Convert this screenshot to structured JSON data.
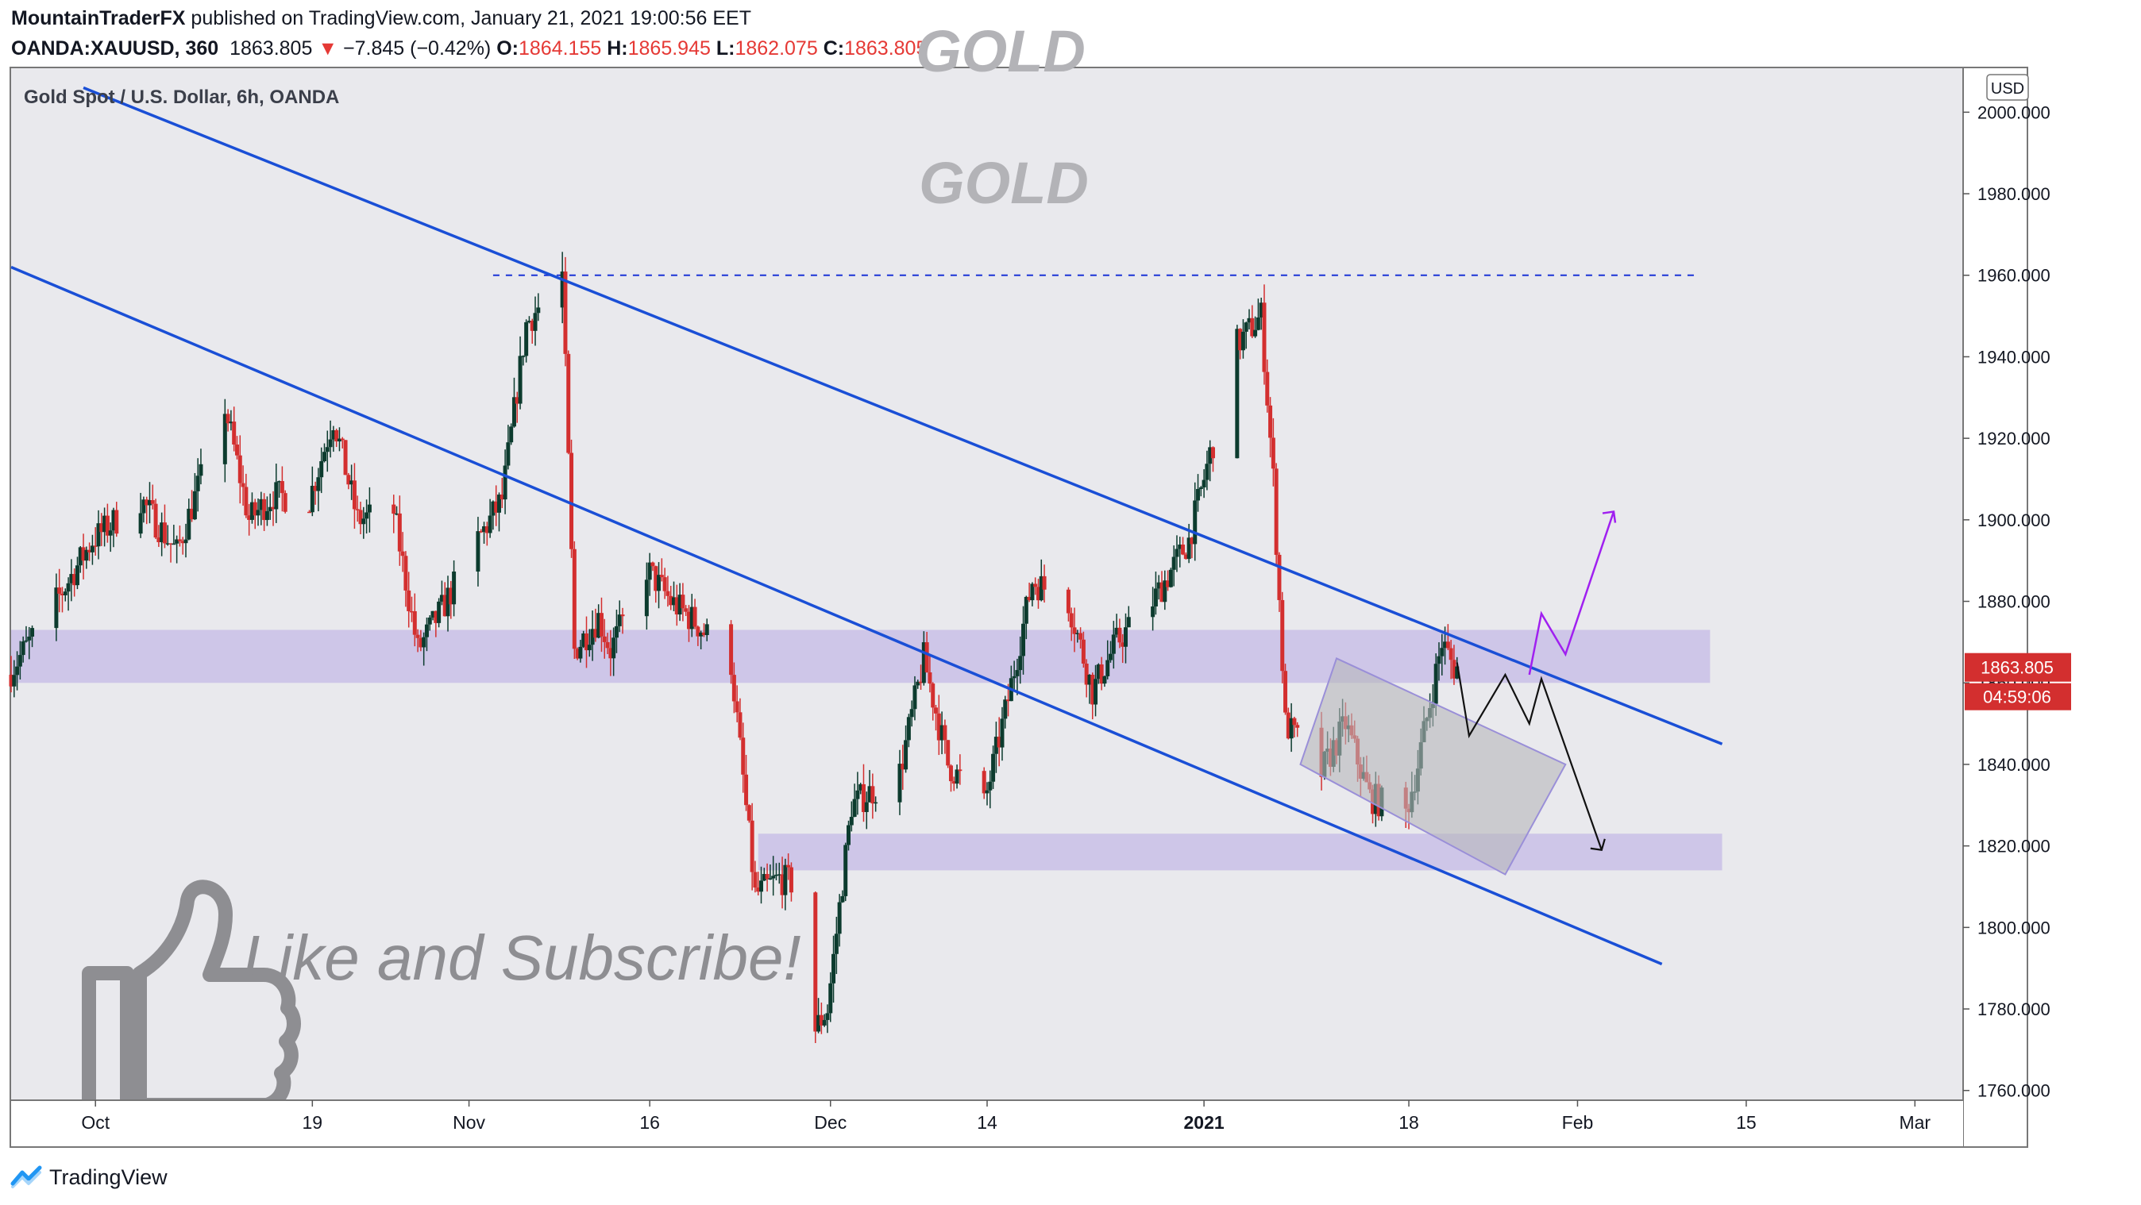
{
  "header": {
    "author": "MountainTraderFX",
    "published_text": "published on TradingView.com, January 21, 2021 19:00:56 EET",
    "symbol": "OANDA:XAUUSD, 360",
    "last_price": "1863.805",
    "change_arrow": "▼",
    "change": "−7.845 (−0.42%)",
    "ohlc": [
      {
        "label": "O:",
        "value": "1864.155"
      },
      {
        "label": "H:",
        "value": "1865.945"
      },
      {
        "label": "L:",
        "value": "1862.075"
      },
      {
        "label": "C:",
        "value": "1863.805"
      }
    ]
  },
  "chart_data": {
    "type": "candlestick",
    "title": "Gold Spot / U.S. Dollar, 6h, OANDA",
    "watermark": "GOLD",
    "currency_badge": "USD",
    "annotation_text": "Like and Subscribe!",
    "price_label": "1863.805",
    "countdown_label": "04:59:06",
    "y_axis": {
      "range": [
        1758,
        2010
      ],
      "ticks": [
        1760,
        1780,
        1800,
        1820,
        1840,
        1860,
        1880,
        1900,
        1920,
        1940,
        1960,
        1980,
        2000
      ],
      "tick_labels": [
        "1760.000",
        "1780.000",
        "1800.000",
        "1820.000",
        "1840.000",
        "1860.000",
        "1880.000",
        "1900.000",
        "1920.000",
        "1940.000",
        "1960.000",
        "1980.000",
        "2000.000"
      ]
    },
    "x_axis": {
      "range": [
        "2020-09-24",
        "2021-03-05"
      ],
      "ticks": [
        {
          "date": "2020-10-01",
          "label": "Oct",
          "bold": false
        },
        {
          "date": "2020-10-19",
          "label": "19",
          "bold": false
        },
        {
          "date": "2020-11-01",
          "label": "Nov",
          "bold": false
        },
        {
          "date": "2020-11-16",
          "label": "16",
          "bold": false
        },
        {
          "date": "2020-12-01",
          "label": "Dec",
          "bold": false
        },
        {
          "date": "2020-12-14",
          "label": "14",
          "bold": false
        },
        {
          "date": "2021-01-01",
          "label": "2021",
          "bold": true
        },
        {
          "date": "2021-01-18",
          "label": "18",
          "bold": false
        },
        {
          "date": "2021-02-01",
          "label": "Feb",
          "bold": false
        },
        {
          "date": "2021-02-15",
          "label": "15",
          "bold": false
        },
        {
          "date": "2021-03-01",
          "label": "Mar",
          "bold": false
        }
      ]
    },
    "price_path": [
      [
        "2020-09-24",
        1862
      ],
      [
        "2020-09-28",
        1880
      ],
      [
        "2020-10-01",
        1895
      ],
      [
        "2020-10-05",
        1905
      ],
      [
        "2020-10-08",
        1892
      ],
      [
        "2020-10-12",
        1928
      ],
      [
        "2020-10-14",
        1900
      ],
      [
        "2020-10-16",
        1906
      ],
      [
        "2020-10-19",
        1905
      ],
      [
        "2020-10-21",
        1925
      ],
      [
        "2020-10-23",
        1900
      ],
      [
        "2020-10-26",
        1902
      ],
      [
        "2020-10-28",
        1868
      ],
      [
        "2020-10-30",
        1878
      ],
      [
        "2020-11-02",
        1895
      ],
      [
        "2020-11-04",
        1905
      ],
      [
        "2020-11-06",
        1948
      ],
      [
        "2020-11-09",
        1960
      ],
      [
        "2020-11-10",
        1868
      ],
      [
        "2020-11-12",
        1876
      ],
      [
        "2020-11-13",
        1868
      ],
      [
        "2020-11-16",
        1888
      ],
      [
        "2020-11-18",
        1880
      ],
      [
        "2020-11-20",
        1875
      ],
      [
        "2020-11-23",
        1865
      ],
      [
        "2020-11-25",
        1808
      ],
      [
        "2020-11-27",
        1812
      ],
      [
        "2020-11-29",
        1810
      ],
      [
        "2020-11-30",
        1775
      ],
      [
        "2020-12-01",
        1780
      ],
      [
        "2020-12-03",
        1830
      ],
      [
        "2020-12-07",
        1838
      ],
      [
        "2020-12-09",
        1866
      ],
      [
        "2020-12-11",
        1840
      ],
      [
        "2020-12-14",
        1830
      ],
      [
        "2020-12-16",
        1856
      ],
      [
        "2020-12-18",
        1885
      ],
      [
        "2020-12-21",
        1880
      ],
      [
        "2020-12-23",
        1858
      ],
      [
        "2020-12-25",
        1870
      ],
      [
        "2020-12-28",
        1880
      ],
      [
        "2020-12-31",
        1895
      ],
      [
        "2021-01-04",
        1943
      ],
      [
        "2021-01-06",
        1950
      ],
      [
        "2021-01-07",
        1910
      ],
      [
        "2021-01-08",
        1850
      ],
      [
        "2021-01-11",
        1838
      ],
      [
        "2021-01-13",
        1850
      ],
      [
        "2021-01-15",
        1832
      ],
      [
        "2021-01-18",
        1828
      ],
      [
        "2021-01-19",
        1840
      ],
      [
        "2021-01-21",
        1870
      ],
      [
        "2021-01-22",
        1863.805
      ]
    ],
    "horizontal_levels": [
      {
        "value": 1960,
        "from": "2020-11-03",
        "to": "2021-02-11",
        "style": "dashed"
      }
    ],
    "zones": [
      {
        "from": "2020-09-24",
        "to": "2021-02-12",
        "low": 1860,
        "high": 1873
      },
      {
        "from": "2020-11-25",
        "to": "2021-02-13",
        "low": 1814,
        "high": 1823
      }
    ],
    "trendlines": [
      {
        "start": [
          "2020-09-30",
          2006
        ],
        "end": [
          "2021-02-13",
          1845
        ]
      },
      {
        "start": [
          "2020-09-24",
          1962
        ],
        "end": [
          "2021-02-08",
          1791
        ]
      }
    ],
    "flag_box": [
      [
        "2021-01-09",
        1840
      ],
      [
        "2021-01-12",
        1866
      ],
      [
        "2021-01-31",
        1840
      ],
      [
        "2021-01-26",
        1813
      ]
    ],
    "projection_bullish": [
      [
        "2021-01-28",
        1862
      ],
      [
        "2021-01-29",
        1877
      ],
      [
        "2021-01-31",
        1867
      ],
      [
        "2021-02-04",
        1902
      ]
    ],
    "projection_bearish": [
      [
        "2021-01-22",
        1865
      ],
      [
        "2021-01-23",
        1847
      ],
      [
        "2021-01-26",
        1862
      ],
      [
        "2021-01-28",
        1850
      ],
      [
        "2021-01-29",
        1861
      ],
      [
        "2021-02-03",
        1819
      ]
    ]
  },
  "footer": {
    "brand": "TradingView"
  }
}
